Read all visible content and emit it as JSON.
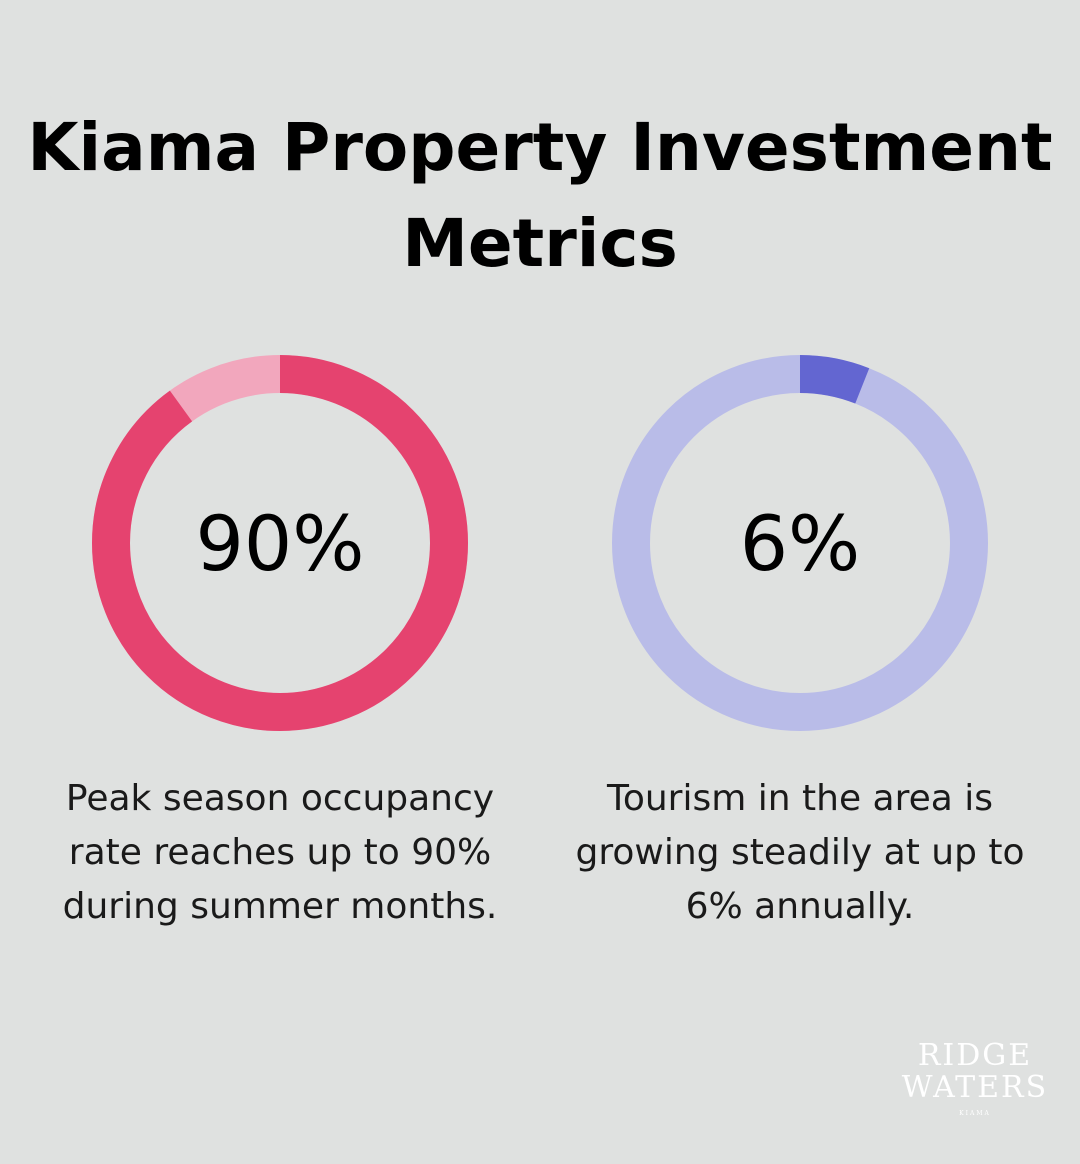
{
  "title": "Kiama Property Investment Metrics",
  "chart_data": [
    {
      "type": "pie",
      "variant": "donut",
      "value_percent": 90,
      "label": "90%",
      "description": "Peak season occupancy rate reaches up to 90% during summer months.",
      "colors": {
        "filled": "#e5436f",
        "remainder": "#f2a7bd"
      }
    },
    {
      "type": "pie",
      "variant": "donut",
      "value_percent": 6,
      "label": "6%",
      "description": "Tourism in the area is growing steadily at up to 6% annually.",
      "colors": {
        "filled": "#6366d1",
        "remainder": "#b9bce8"
      }
    }
  ],
  "logo": {
    "line1": "RIDGE",
    "line2": "WATERS",
    "line3": "KIAMA"
  }
}
